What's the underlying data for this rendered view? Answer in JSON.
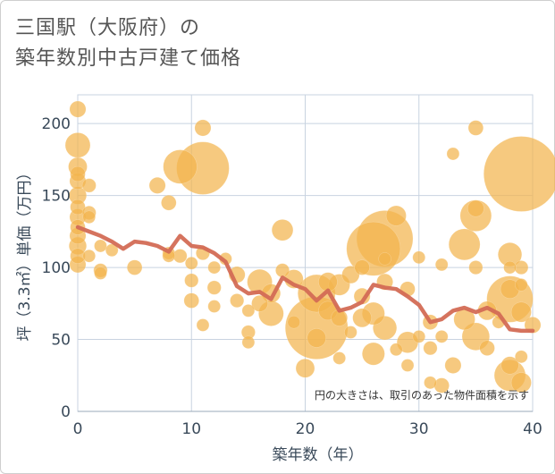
{
  "title_lines": [
    "三国駅（大阪府）の",
    "築年数別中古戸建て価格"
  ],
  "chart_data": {
    "type": "scatter",
    "xlabel": "築年数（年）",
    "ylabel": "坪（3.3㎡）単価（万円）",
    "xlim": [
      0,
      40
    ],
    "ylim": [
      0,
      220
    ],
    "xticks": [
      0,
      10,
      20,
      30,
      40
    ],
    "yticks": [
      0,
      50,
      100,
      150,
      200
    ],
    "grid": true,
    "note": "円の大きさは、取引のあった物件面積を示す",
    "colors": {
      "bubble": "#f2b44d",
      "line": "#d36b55",
      "grid": "#c8d3e0",
      "axis_text": "#3a4a5a",
      "background": "#ffffff"
    },
    "scatter": [
      {
        "x": 0,
        "y": 210,
        "s": 1.3
      },
      {
        "x": 0,
        "y": 185,
        "s": 2.0
      },
      {
        "x": 0,
        "y": 170,
        "s": 1.5
      },
      {
        "x": 0,
        "y": 165,
        "s": 1.2
      },
      {
        "x": 0,
        "y": 160,
        "s": 1.3
      },
      {
        "x": 0,
        "y": 150,
        "s": 1.4
      },
      {
        "x": 0,
        "y": 142,
        "s": 1.2
      },
      {
        "x": 0,
        "y": 135,
        "s": 1.3
      },
      {
        "x": 0,
        "y": 128,
        "s": 1.2
      },
      {
        "x": 0,
        "y": 122,
        "s": 1.3
      },
      {
        "x": 0,
        "y": 115,
        "s": 1.4
      },
      {
        "x": 0,
        "y": 108,
        "s": 1.2
      },
      {
        "x": 0,
        "y": 102,
        "s": 1.3
      },
      {
        "x": 1,
        "y": 157,
        "s": 1.1
      },
      {
        "x": 1,
        "y": 138,
        "s": 1.1
      },
      {
        "x": 1,
        "y": 135,
        "s": 1.0
      },
      {
        "x": 1,
        "y": 108,
        "s": 1.0
      },
      {
        "x": 2,
        "y": 115,
        "s": 1.0
      },
      {
        "x": 2,
        "y": 98,
        "s": 1.1
      },
      {
        "x": 2,
        "y": 96,
        "s": 1.0
      },
      {
        "x": 3,
        "y": 112,
        "s": 1.0
      },
      {
        "x": 5,
        "y": 100,
        "s": 1.2
      },
      {
        "x": 7,
        "y": 157,
        "s": 1.3
      },
      {
        "x": 8,
        "y": 145,
        "s": 1.2
      },
      {
        "x": 8,
        "y": 110,
        "s": 1.0
      },
      {
        "x": 8,
        "y": 108,
        "s": 1.0
      },
      {
        "x": 9,
        "y": 108,
        "s": 1.1
      },
      {
        "x": 9,
        "y": 170,
        "s": 2.7
      },
      {
        "x": 10,
        "y": 103,
        "s": 1.0
      },
      {
        "x": 10,
        "y": 91,
        "s": 1.1
      },
      {
        "x": 10,
        "y": 77,
        "s": 1.2
      },
      {
        "x": 11,
        "y": 197,
        "s": 1.3
      },
      {
        "x": 11,
        "y": 169,
        "s": 4.2
      },
      {
        "x": 11,
        "y": 110,
        "s": 1.1
      },
      {
        "x": 11,
        "y": 60,
        "s": 1.0
      },
      {
        "x": 12,
        "y": 100,
        "s": 1.0
      },
      {
        "x": 12,
        "y": 86,
        "s": 1.1
      },
      {
        "x": 12,
        "y": 73,
        "s": 1.0
      },
      {
        "x": 13,
        "y": 106,
        "s": 1.0
      },
      {
        "x": 14,
        "y": 95,
        "s": 1.3
      },
      {
        "x": 14,
        "y": 77,
        "s": 1.1
      },
      {
        "x": 15,
        "y": 70,
        "s": 1.0
      },
      {
        "x": 15,
        "y": 55,
        "s": 1.1
      },
      {
        "x": 15,
        "y": 48,
        "s": 1.0
      },
      {
        "x": 16,
        "y": 90,
        "s": 2.0
      },
      {
        "x": 16,
        "y": 75,
        "s": 1.3
      },
      {
        "x": 17,
        "y": 82,
        "s": 1.5
      },
      {
        "x": 17,
        "y": 68,
        "s": 2.0
      },
      {
        "x": 18,
        "y": 126,
        "s": 1.7
      },
      {
        "x": 18,
        "y": 98,
        "s": 1.1
      },
      {
        "x": 19,
        "y": 92,
        "s": 1.5
      },
      {
        "x": 19,
        "y": 62,
        "s": 1.0
      },
      {
        "x": 20,
        "y": 30,
        "s": 1.5
      },
      {
        "x": 21,
        "y": 82,
        "s": 3.0
      },
      {
        "x": 21,
        "y": 58,
        "s": 5.0
      },
      {
        "x": 21,
        "y": 51,
        "s": 1.5
      },
      {
        "x": 22,
        "y": 90,
        "s": 1.5
      },
      {
        "x": 22,
        "y": 70,
        "s": 1.5
      },
      {
        "x": 23,
        "y": 88,
        "s": 1.7
      },
      {
        "x": 23,
        "y": 65,
        "s": 1.3
      },
      {
        "x": 23,
        "y": 37,
        "s": 1.0
      },
      {
        "x": 24,
        "y": 95,
        "s": 1.4
      },
      {
        "x": 24,
        "y": 55,
        "s": 1.0
      },
      {
        "x": 25,
        "y": 100,
        "s": 1.2
      },
      {
        "x": 25,
        "y": 80,
        "s": 1.3
      },
      {
        "x": 25,
        "y": 65,
        "s": 1.5
      },
      {
        "x": 26,
        "y": 113,
        "s": 4.3
      },
      {
        "x": 26,
        "y": 68,
        "s": 1.8
      },
      {
        "x": 26,
        "y": 40,
        "s": 1.8
      },
      {
        "x": 27,
        "y": 120,
        "s": 4.5
      },
      {
        "x": 27,
        "y": 106,
        "s": 1.0
      },
      {
        "x": 27,
        "y": 90,
        "s": 1.3
      },
      {
        "x": 27,
        "y": 58,
        "s": 1.9
      },
      {
        "x": 28,
        "y": 136,
        "s": 1.6
      },
      {
        "x": 28,
        "y": 43,
        "s": 1.0
      },
      {
        "x": 29,
        "y": 85,
        "s": 1.2
      },
      {
        "x": 29,
        "y": 48,
        "s": 1.7
      },
      {
        "x": 29,
        "y": 32,
        "s": 1.0
      },
      {
        "x": 30,
        "y": 107,
        "s": 1.0
      },
      {
        "x": 30,
        "y": 52,
        "s": 1.0
      },
      {
        "x": 31,
        "y": 62,
        "s": 1.2
      },
      {
        "x": 31,
        "y": 44,
        "s": 1.1
      },
      {
        "x": 31,
        "y": 20,
        "s": 1.0
      },
      {
        "x": 32,
        "y": 102,
        "s": 1.0
      },
      {
        "x": 32,
        "y": 52,
        "s": 1.0
      },
      {
        "x": 32,
        "y": 18,
        "s": 1.2
      },
      {
        "x": 33,
        "y": 179,
        "s": 1.0
      },
      {
        "x": 33,
        "y": 32,
        "s": 1.3
      },
      {
        "x": 34,
        "y": 116,
        "s": 2.5
      },
      {
        "x": 34,
        "y": 64,
        "s": 1.7
      },
      {
        "x": 35,
        "y": 197,
        "s": 1.2
      },
      {
        "x": 35,
        "y": 141,
        "s": 1.3
      },
      {
        "x": 35,
        "y": 136,
        "s": 2.5
      },
      {
        "x": 35,
        "y": 100,
        "s": 1.1
      },
      {
        "x": 35,
        "y": 52,
        "s": 2.2
      },
      {
        "x": 36,
        "y": 70,
        "s": 1.5
      },
      {
        "x": 36,
        "y": 44,
        "s": 1.2
      },
      {
        "x": 37,
        "y": 62,
        "s": 1.0
      },
      {
        "x": 38,
        "y": 109,
        "s": 1.9
      },
      {
        "x": 38,
        "y": 100,
        "s": 1.0
      },
      {
        "x": 38,
        "y": 85,
        "s": 1.5
      },
      {
        "x": 38,
        "y": 78,
        "s": 3.7
      },
      {
        "x": 38,
        "y": 32,
        "s": 1.4
      },
      {
        "x": 38,
        "y": 25,
        "s": 2.5
      },
      {
        "x": 39,
        "y": 165,
        "s": 6.0
      },
      {
        "x": 39,
        "y": 100,
        "s": 1.1
      },
      {
        "x": 39,
        "y": 88,
        "s": 1.0
      },
      {
        "x": 39,
        "y": 69,
        "s": 1.6
      },
      {
        "x": 39,
        "y": 38,
        "s": 1.0
      },
      {
        "x": 39,
        "y": 20,
        "s": 1.6
      },
      {
        "x": 40,
        "y": 60,
        "s": 1.3
      }
    ],
    "line": {
      "x": [
        0,
        1,
        2,
        3,
        4,
        5,
        6,
        7,
        8,
        9,
        10,
        11,
        12,
        13,
        14,
        15,
        16,
        17,
        18,
        19,
        20,
        21,
        22,
        23,
        24,
        25,
        26,
        27,
        28,
        29,
        30,
        31,
        32,
        33,
        34,
        35,
        36,
        37,
        38,
        39,
        40
      ],
      "y": [
        128,
        125,
        122,
        118,
        113,
        118,
        117,
        115,
        111,
        122,
        115,
        114,
        110,
        104,
        87,
        82,
        83,
        78,
        93,
        88,
        85,
        77,
        84,
        70,
        72,
        76,
        88,
        86,
        85,
        80,
        74,
        62,
        64,
        70,
        72,
        69,
        72,
        68,
        57,
        56,
        56
      ]
    }
  }
}
